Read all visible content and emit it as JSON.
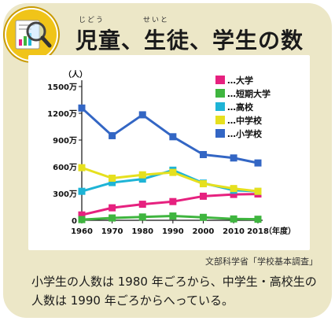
{
  "header": {
    "title": "児童、生徒、学生の数",
    "ruby_jido": "じどう",
    "ruby_seito": "せいと"
  },
  "icon": {
    "name": "magnifier-chart-icon",
    "color": "#f0c419"
  },
  "source": "文部科学省「学校基本調査」",
  "caption": "小学生の人数は 1980 年ごろから、中学生・高校生の人数は 1990 年ごろからへっている。",
  "chart_data": {
    "type": "line",
    "ylabel": "（人）",
    "xlabel": "（年度）",
    "x": [
      1960,
      1970,
      1980,
      1990,
      2000,
      2010,
      2018
    ],
    "x_tick_labels": [
      "1960",
      "1970",
      "1980",
      "1990",
      "2000",
      "2010",
      "2018"
    ],
    "ylim": [
      0,
      1500
    ],
    "y_ticks": [
      0,
      300,
      600,
      900,
      1200,
      1500
    ],
    "y_tick_labels": [
      "0",
      "300万",
      "600万",
      "900万",
      "1200万",
      "1500万"
    ],
    "grid": false,
    "legend_position": "top-right",
    "series": [
      {
        "name": "…大学",
        "color": "#e6217f",
        "values": [
          60,
          140,
          180,
          210,
          270,
          290,
          295
        ]
      },
      {
        "name": "…短期大学",
        "color": "#3fb53f",
        "values": [
          8,
          26,
          37,
          48,
          33,
          15,
          12
        ]
      },
      {
        "name": "…高校",
        "color": "#1eb4d6",
        "values": [
          325,
          423,
          462,
          562,
          417,
          337,
          324
        ]
      },
      {
        "name": "…中学校",
        "color": "#e6e01e",
        "values": [
          590,
          472,
          510,
          537,
          410,
          356,
          325
        ]
      },
      {
        "name": "…小学校",
        "color": "#3366c4",
        "values": [
          1259,
          949,
          1183,
          937,
          737,
          699,
          643
        ]
      }
    ]
  }
}
